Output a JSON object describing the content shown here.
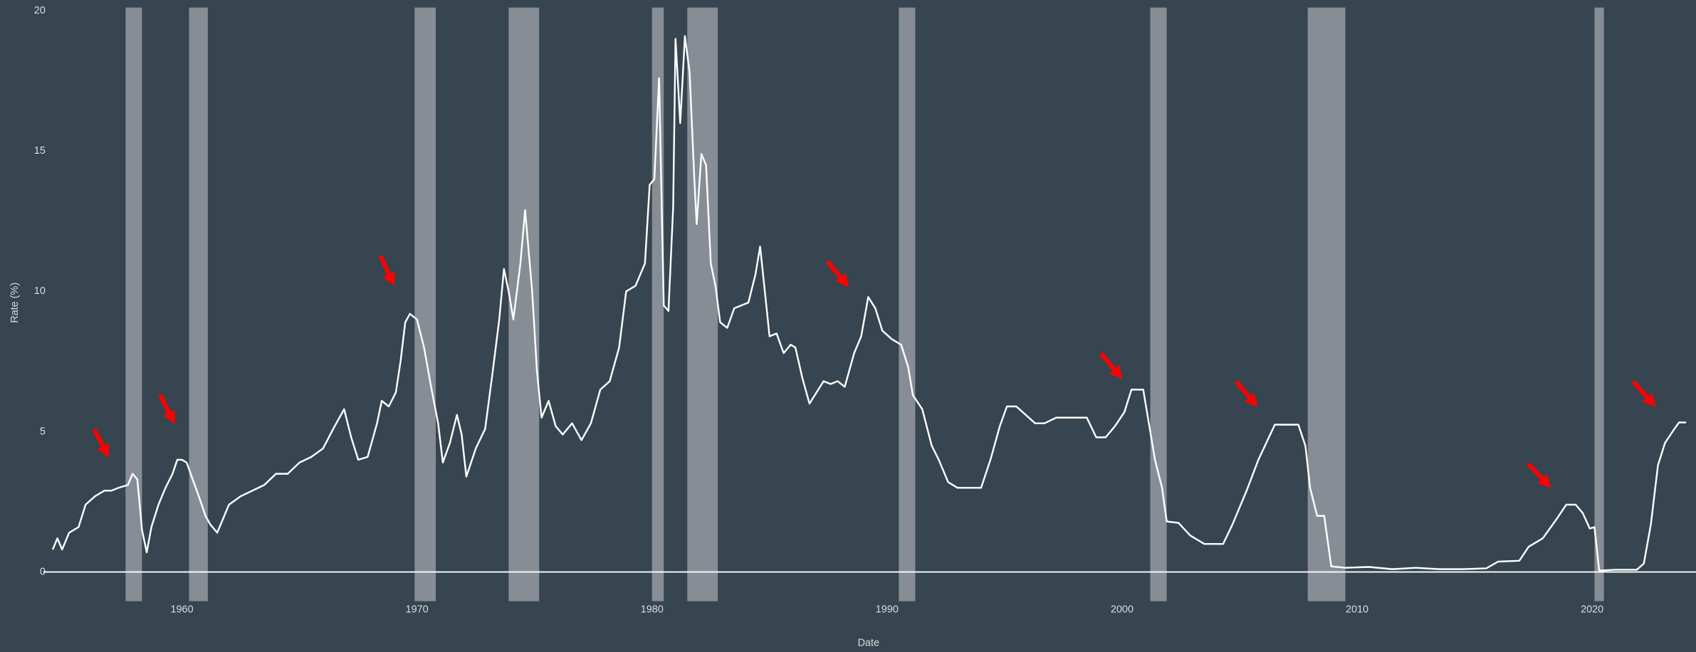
{
  "chart_data": {
    "type": "line",
    "x_label": "Date",
    "y_label": "Rate (%)",
    "color": "#ffffff",
    "recession_color": "#868d95",
    "xlim": [
      1954.1,
      2024.05
    ],
    "ylim": [
      0,
      20
    ],
    "xticks": [
      1960,
      1970,
      1980,
      1990,
      2000,
      2010,
      2020
    ],
    "yticks": [
      0,
      5,
      10,
      15,
      20
    ],
    "recessions": [
      [
        1957.6,
        1958.3
      ],
      [
        1960.3,
        1961.1
      ],
      [
        1969.9,
        1970.8
      ],
      [
        1973.9,
        1975.2
      ],
      [
        1980.0,
        1980.5
      ],
      [
        1981.5,
        1982.8
      ],
      [
        1990.5,
        1991.2
      ],
      [
        2001.2,
        2001.9
      ],
      [
        2007.9,
        2009.5
      ],
      [
        2020.1,
        2020.5
      ]
    ],
    "x": [
      1954.5,
      1954.7,
      1954.9,
      1955.2,
      1955.6,
      1955.9,
      1956.3,
      1956.7,
      1957.0,
      1957.3,
      1957.7,
      1957.9,
      1958.1,
      1958.3,
      1958.5,
      1958.7,
      1959.0,
      1959.3,
      1959.6,
      1959.8,
      1960.0,
      1960.2,
      1960.5,
      1960.8,
      1961.0,
      1961.2,
      1961.5,
      1961.8,
      1962.0,
      1962.5,
      1963.0,
      1963.5,
      1964.0,
      1964.5,
      1965.0,
      1965.5,
      1966.0,
      1966.5,
      1966.9,
      1967.2,
      1967.5,
      1967.9,
      1968.3,
      1968.5,
      1968.8,
      1969.1,
      1969.3,
      1969.5,
      1969.7,
      1970.0,
      1970.3,
      1970.6,
      1970.9,
      1971.1,
      1971.4,
      1971.7,
      1971.9,
      1972.1,
      1972.5,
      1972.9,
      1973.2,
      1973.5,
      1973.7,
      1973.9,
      1974.1,
      1974.4,
      1974.6,
      1974.9,
      1975.1,
      1975.3,
      1975.6,
      1975.9,
      1976.2,
      1976.6,
      1977.0,
      1977.4,
      1977.8,
      1978.2,
      1978.6,
      1978.9,
      1979.3,
      1979.7,
      1979.9,
      1980.1,
      1980.3,
      1980.5,
      1980.7,
      1980.9,
      1981.0,
      1981.2,
      1981.4,
      1981.6,
      1981.8,
      1981.9,
      1982.1,
      1982.3,
      1982.5,
      1982.7,
      1982.9,
      1983.2,
      1983.5,
      1983.8,
      1984.1,
      1984.4,
      1984.6,
      1984.8,
      1985.0,
      1985.3,
      1985.6,
      1985.9,
      1986.1,
      1986.4,
      1986.7,
      1987.0,
      1987.3,
      1987.6,
      1987.9,
      1988.2,
      1988.6,
      1988.9,
      1989.2,
      1989.5,
      1989.8,
      1990.2,
      1990.6,
      1990.9,
      1991.1,
      1991.5,
      1991.9,
      1992.2,
      1992.6,
      1993.0,
      1993.5,
      1994.0,
      1994.4,
      1994.8,
      1995.1,
      1995.5,
      1995.9,
      1996.3,
      1996.7,
      1997.2,
      1997.6,
      1998.0,
      1998.5,
      1998.9,
      1999.3,
      1999.7,
      2000.1,
      2000.4,
      2000.9,
      2001.1,
      2001.4,
      2001.7,
      2001.9,
      2002.4,
      2002.9,
      2003.5,
      2004.3,
      2004.7,
      2005.3,
      2005.8,
      2006.5,
      2007.5,
      2007.8,
      2008.0,
      2008.3,
      2008.6,
      2008.9,
      2009.5,
      2010.5,
      2011.5,
      2012.5,
      2013.5,
      2014.5,
      2015.5,
      2016.0,
      2016.9,
      2017.3,
      2017.9,
      2018.5,
      2018.9,
      2019.3,
      2019.6,
      2019.9,
      2020.1,
      2020.3,
      2021.0,
      2021.9,
      2022.2,
      2022.5,
      2022.8,
      2023.1,
      2023.5,
      2023.7,
      2024.0
    ],
    "values": [
      0.8,
      1.2,
      0.8,
      1.4,
      1.6,
      2.4,
      2.7,
      2.9,
      2.9,
      3.0,
      3.1,
      3.5,
      3.3,
      1.5,
      0.7,
      1.6,
      2.4,
      3.0,
      3.5,
      4.0,
      4.0,
      3.9,
      3.2,
      2.5,
      2.0,
      1.7,
      1.4,
      2.0,
      2.4,
      2.7,
      2.9,
      3.1,
      3.5,
      3.5,
      3.9,
      4.1,
      4.4,
      5.2,
      5.8,
      4.8,
      4.0,
      4.1,
      5.3,
      6.1,
      5.9,
      6.4,
      7.5,
      8.9,
      9.2,
      9.0,
      8.0,
      6.6,
      5.3,
      3.9,
      4.6,
      5.6,
      4.9,
      3.4,
      4.4,
      5.1,
      7.0,
      9.0,
      10.8,
      10.0,
      9.0,
      11.0,
      12.9,
      10.0,
      7.2,
      5.5,
      6.1,
      5.2,
      4.9,
      5.3,
      4.7,
      5.3,
      6.5,
      6.8,
      8.0,
      10.0,
      10.2,
      11.0,
      13.8,
      14.0,
      17.6,
      9.5,
      9.3,
      13.0,
      19.0,
      16.0,
      19.1,
      17.8,
      14.0,
      12.4,
      14.9,
      14.5,
      11.0,
      10.2,
      8.9,
      8.7,
      9.4,
      9.5,
      9.6,
      10.6,
      11.6,
      10.0,
      8.4,
      8.5,
      7.8,
      8.1,
      8.0,
      6.9,
      6.0,
      6.4,
      6.8,
      6.7,
      6.8,
      6.6,
      7.8,
      8.4,
      9.8,
      9.4,
      8.6,
      8.3,
      8.1,
      7.3,
      6.3,
      5.8,
      4.5,
      4.0,
      3.2,
      3.0,
      3.0,
      3.0,
      4.0,
      5.2,
      5.9,
      5.9,
      5.6,
      5.3,
      5.3,
      5.5,
      5.5,
      5.5,
      5.5,
      4.8,
      4.8,
      5.2,
      5.7,
      6.5,
      6.5,
      5.5,
      4.0,
      3.0,
      1.8,
      1.75,
      1.3,
      1.0,
      1.0,
      1.7,
      2.9,
      4.0,
      5.25,
      5.25,
      4.5,
      3.0,
      2.0,
      2.0,
      0.2,
      0.15,
      0.18,
      0.1,
      0.15,
      0.1,
      0.1,
      0.13,
      0.37,
      0.4,
      0.9,
      1.2,
      1.9,
      2.4,
      2.4,
      2.1,
      1.55,
      1.6,
      0.05,
      0.08,
      0.08,
      0.3,
      1.7,
      3.8,
      4.6,
      5.1,
      5.33,
      5.33
    ]
  }
}
